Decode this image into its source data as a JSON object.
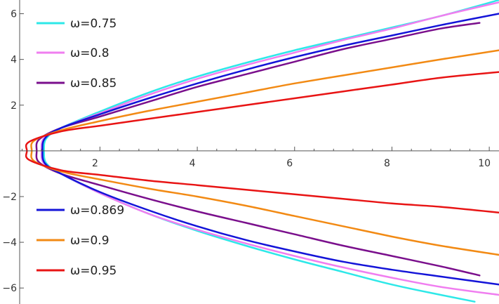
{
  "chart_data": {
    "type": "line",
    "title": "",
    "xlabel": "",
    "ylabel": "",
    "xlim": [
      0.35,
      10.2
    ],
    "ylim": [
      -6.7,
      6.6
    ],
    "grid": false,
    "x_ticks": [
      2,
      4,
      6,
      8,
      10
    ],
    "y_ticks": [
      -6,
      -4,
      -2,
      2,
      4,
      6
    ],
    "x_tick_labels": [
      "2",
      "4",
      "6",
      "8",
      "10"
    ],
    "y_tick_labels": [
      "−6",
      "−4",
      "−2",
      "2",
      "4",
      "6"
    ],
    "legend": [
      {
        "label": "ω=0.75",
        "color": "#2ee8e8",
        "placement": "top-left"
      },
      {
        "label": "ω=0.8",
        "color": "#f07ef0",
        "placement": "top-left"
      },
      {
        "label": "ω=0.85",
        "color": "#7a0f8c",
        "placement": "top-left"
      },
      {
        "label": "ω=0.869",
        "color": "#1414d8",
        "placement": "bottom-left"
      },
      {
        "label": "ω=0.9",
        "color": "#f28a14",
        "placement": "bottom-left"
      },
      {
        "label": "ω=0.95",
        "color": "#e81414",
        "placement": "bottom-left"
      }
    ],
    "series": [
      {
        "name": "ω=0.75",
        "color": "#2ee8e8",
        "upper": [
          [
            0.85,
            0
          ],
          [
            0.9,
            0.55
          ],
          [
            1.2,
            1.0
          ],
          [
            2,
            1.72
          ],
          [
            3,
            2.55
          ],
          [
            4,
            3.25
          ],
          [
            5,
            3.85
          ],
          [
            6,
            4.4
          ],
          [
            7,
            4.9
          ],
          [
            8,
            5.4
          ],
          [
            9,
            5.9
          ],
          [
            10.2,
            6.6
          ]
        ],
        "lower": [
          [
            0.85,
            0
          ],
          [
            0.9,
            -0.55
          ],
          [
            1.2,
            -1.0
          ],
          [
            2,
            -1.85
          ],
          [
            3,
            -2.75
          ],
          [
            4,
            -3.5
          ],
          [
            5,
            -4.15
          ],
          [
            6,
            -4.75
          ],
          [
            7,
            -5.3
          ],
          [
            8,
            -5.85
          ],
          [
            9,
            -6.3
          ],
          [
            9.7,
            -6.6
          ]
        ]
      },
      {
        "name": "ω=0.8",
        "color": "#f07ef0",
        "upper": [
          [
            0.8,
            0
          ],
          [
            0.85,
            0.55
          ],
          [
            1.2,
            1.0
          ],
          [
            2,
            1.65
          ],
          [
            3,
            2.45
          ],
          [
            4,
            3.15
          ],
          [
            5,
            3.75
          ],
          [
            6,
            4.3
          ],
          [
            7,
            4.85
          ],
          [
            8,
            5.35
          ],
          [
            9,
            5.9
          ],
          [
            10.2,
            6.5
          ]
        ],
        "lower": [
          [
            0.8,
            0
          ],
          [
            0.85,
            -0.55
          ],
          [
            1.2,
            -1.0
          ],
          [
            2,
            -1.85
          ],
          [
            3,
            -2.75
          ],
          [
            4,
            -3.45
          ],
          [
            5,
            -4.05
          ],
          [
            6,
            -4.6
          ],
          [
            7,
            -5.1
          ],
          [
            8,
            -5.55
          ],
          [
            9,
            -5.95
          ],
          [
            10.2,
            -6.3
          ]
        ]
      },
      {
        "name": "ω=0.85",
        "color": "#7a0f8c",
        "upper": [
          [
            0.7,
            0
          ],
          [
            0.75,
            0.5
          ],
          [
            1.2,
            1.0
          ],
          [
            2,
            1.5
          ],
          [
            3,
            2.15
          ],
          [
            4,
            2.8
          ],
          [
            5,
            3.35
          ],
          [
            6,
            3.9
          ],
          [
            7,
            4.45
          ],
          [
            8,
            4.9
          ],
          [
            9,
            5.35
          ],
          [
            9.8,
            5.6
          ]
        ],
        "lower": [
          [
            0.7,
            0
          ],
          [
            0.75,
            -0.5
          ],
          [
            1.2,
            -1.0
          ],
          [
            2,
            -1.5
          ],
          [
            3,
            -2.1
          ],
          [
            4,
            -2.65
          ],
          [
            5,
            -3.15
          ],
          [
            6,
            -3.65
          ],
          [
            7,
            -4.15
          ],
          [
            8,
            -4.6
          ],
          [
            9,
            -5.05
          ],
          [
            9.8,
            -5.45
          ]
        ]
      },
      {
        "name": "ω=0.869",
        "color": "#1414d8",
        "upper": [
          [
            0.82,
            0
          ],
          [
            0.87,
            0.55
          ],
          [
            1.2,
            1.0
          ],
          [
            2,
            1.6
          ],
          [
            3,
            2.3
          ],
          [
            4,
            2.95
          ],
          [
            5,
            3.55
          ],
          [
            6,
            4.1
          ],
          [
            7,
            4.6
          ],
          [
            8,
            5.05
          ],
          [
            9,
            5.5
          ],
          [
            10.2,
            6.0
          ]
        ],
        "lower": [
          [
            0.82,
            0
          ],
          [
            0.87,
            -0.55
          ],
          [
            1.2,
            -1.0
          ],
          [
            2,
            -1.8
          ],
          [
            3,
            -2.6
          ],
          [
            4,
            -3.3
          ],
          [
            5,
            -3.9
          ],
          [
            6,
            -4.4
          ],
          [
            7,
            -4.85
          ],
          [
            8,
            -5.2
          ],
          [
            9,
            -5.5
          ],
          [
            10.2,
            -5.85
          ]
        ]
      },
      {
        "name": "ω=0.9",
        "color": "#f28a14",
        "upper": [
          [
            0.6,
            0
          ],
          [
            0.65,
            0.45
          ],
          [
            1.2,
            0.9
          ],
          [
            2,
            1.3
          ],
          [
            3,
            1.75
          ],
          [
            4,
            2.15
          ],
          [
            5,
            2.55
          ],
          [
            6,
            2.95
          ],
          [
            7,
            3.3
          ],
          [
            8,
            3.65
          ],
          [
            9,
            4.0
          ],
          [
            10.2,
            4.4
          ]
        ],
        "lower": [
          [
            0.6,
            0
          ],
          [
            0.65,
            -0.45
          ],
          [
            1.2,
            -0.9
          ],
          [
            2,
            -1.25
          ],
          [
            3,
            -1.65
          ],
          [
            4,
            -2.0
          ],
          [
            5,
            -2.4
          ],
          [
            6,
            -2.85
          ],
          [
            7,
            -3.3
          ],
          [
            8,
            -3.75
          ],
          [
            9,
            -4.15
          ],
          [
            10.2,
            -4.55
          ]
        ]
      },
      {
        "name": "ω=0.95",
        "color": "#e81414",
        "upper": [
          [
            0.5,
            0
          ],
          [
            0.55,
            0.4
          ],
          [
            1.2,
            0.85
          ],
          [
            2,
            1.1
          ],
          [
            3,
            1.4
          ],
          [
            4,
            1.7
          ],
          [
            5,
            2.0
          ],
          [
            6,
            2.3
          ],
          [
            7,
            2.6
          ],
          [
            8,
            2.9
          ],
          [
            9,
            3.2
          ],
          [
            10.2,
            3.45
          ]
        ],
        "lower": [
          [
            0.5,
            0
          ],
          [
            0.55,
            -0.4
          ],
          [
            1.2,
            -0.85
          ],
          [
            2,
            -1.05
          ],
          [
            3,
            -1.3
          ],
          [
            4,
            -1.5
          ],
          [
            5,
            -1.7
          ],
          [
            6,
            -1.9
          ],
          [
            7,
            -2.1
          ],
          [
            8,
            -2.3
          ],
          [
            9,
            -2.45
          ],
          [
            10.2,
            -2.7
          ]
        ]
      }
    ]
  }
}
